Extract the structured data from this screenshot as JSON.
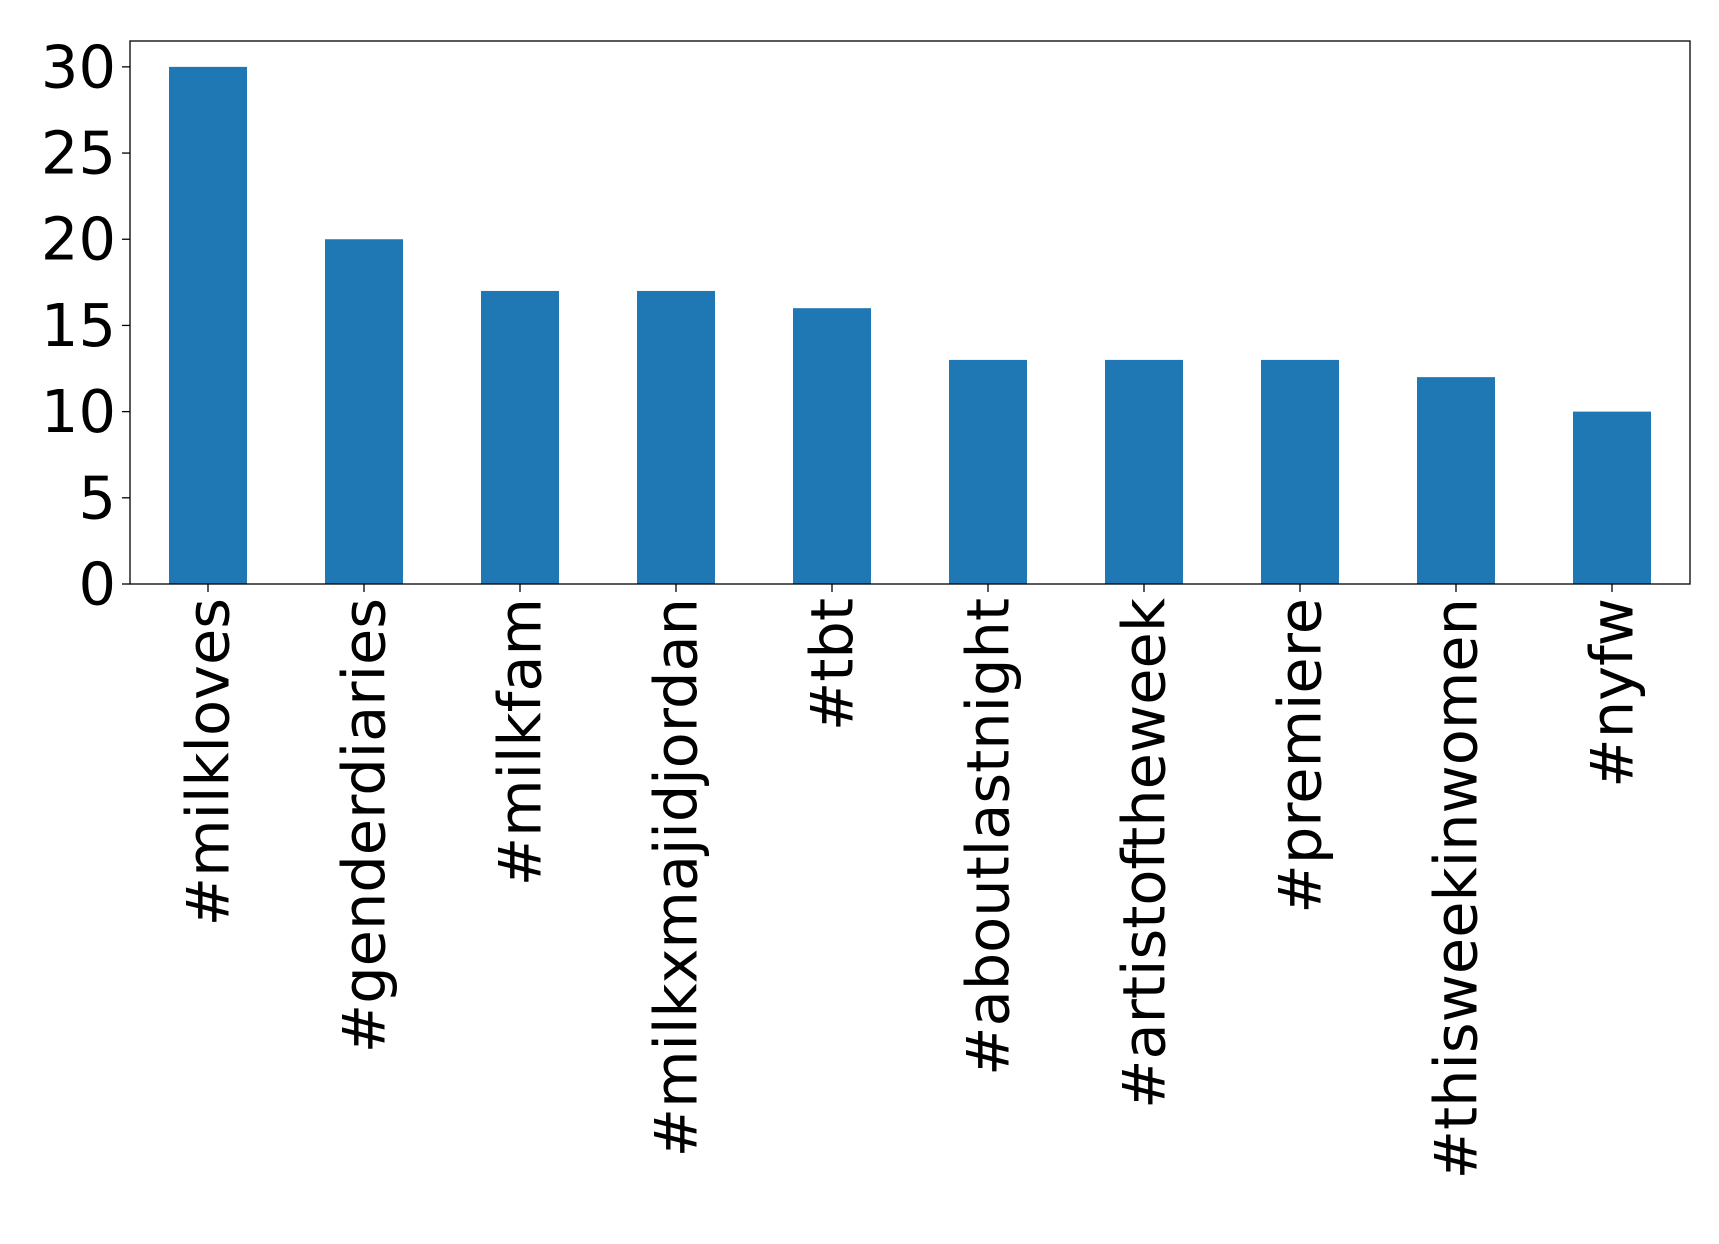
{
  "chart_data": {
    "type": "bar",
    "categories": [
      "#milkloves",
      "#genderdiaries",
      "#milkfam",
      "#milkxmajidjordan",
      "#tbt",
      "#aboutlastnight",
      "#artistoftheweek",
      "#premiere",
      "#thisweekinwomen",
      "#nyfw"
    ],
    "values": [
      30,
      20,
      17,
      17,
      16,
      13,
      13,
      13,
      12,
      10
    ],
    "ylim": [
      0,
      31.5
    ],
    "yticks": [
      0,
      5,
      10,
      15,
      20,
      25,
      30
    ],
    "bar_color": "#1f77b4",
    "grid": false,
    "legend": "none"
  }
}
